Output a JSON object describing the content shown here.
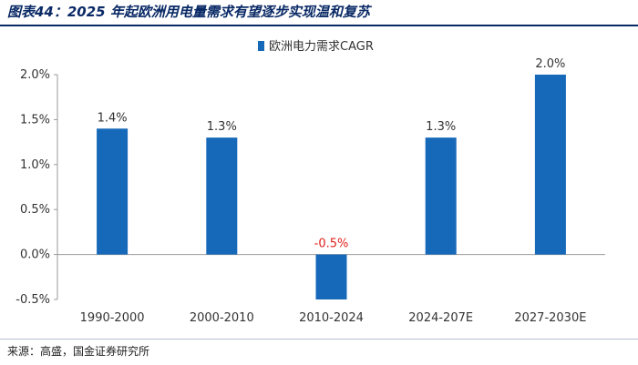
{
  "figure": {
    "title": "图表44：2025 年起欧洲用电量需求有望逐步实现温和复苏",
    "source": "来源：高盛，国金证券研究所"
  },
  "chart_data": {
    "type": "bar",
    "categories": [
      "1990-2000",
      "2000-2010",
      "2010-2024",
      "2024-207E",
      "2027-2030E"
    ],
    "series": [
      {
        "name": "欧洲电力需求CAGR",
        "values": [
          1.4,
          1.3,
          -0.5,
          1.3,
          2.0
        ]
      }
    ],
    "data_labels": [
      "1.4%",
      "1.3%",
      "-0.5%",
      "1.3%",
      "2.0%"
    ],
    "y_ticks": [
      "-0.5%",
      "0.0%",
      "0.5%",
      "1.0%",
      "1.5%",
      "2.0%"
    ],
    "ylim": [
      -0.5,
      2.0
    ],
    "ytick_step": 0.5,
    "grid": false,
    "legend_position": "top-center",
    "colors": {
      "bar": "#1668b8",
      "negative_label": "#e0201b",
      "label": "#333333"
    }
  }
}
